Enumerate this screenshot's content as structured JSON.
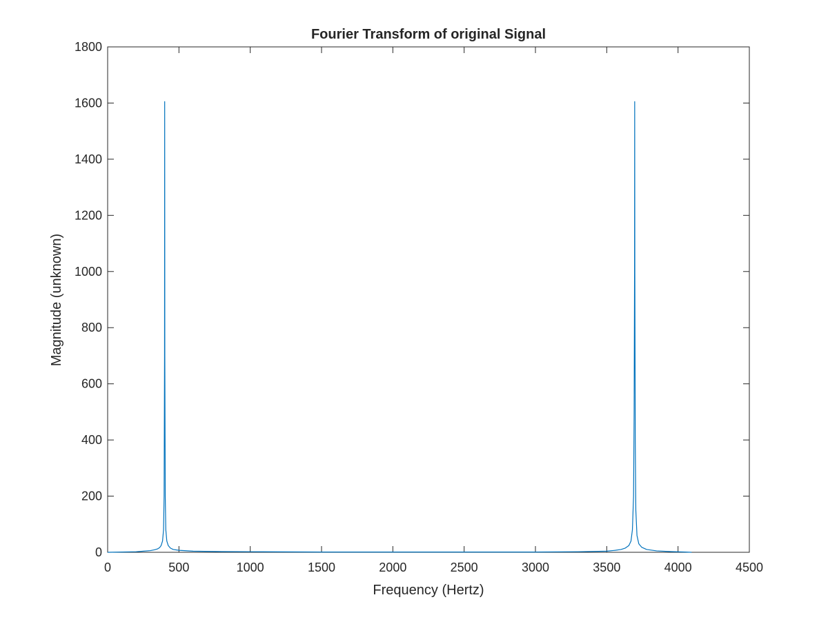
{
  "colors": {
    "background": "#ffffff",
    "axis": "#262626",
    "series": "#0072bd"
  },
  "chart_data": {
    "type": "line",
    "title": "Fourier Transform of original Signal",
    "xlabel": "Frequency (Hertz)",
    "ylabel": "Magnitude (unknown)",
    "xlim": [
      0,
      4500
    ],
    "ylim": [
      0,
      1800
    ],
    "xticks": [
      0,
      500,
      1000,
      1500,
      2000,
      2500,
      3000,
      3500,
      4000,
      4500
    ],
    "yticks": [
      0,
      200,
      400,
      600,
      800,
      1000,
      1200,
      1400,
      1600,
      1800
    ],
    "grid": false,
    "legend": "none",
    "series": [
      {
        "x": [
          0,
          100,
          200,
          250,
          300,
          330,
          350,
          365,
          375,
          385,
          392,
          396,
          399,
          400,
          401,
          404,
          408,
          415,
          425,
          440,
          460,
          500,
          600,
          800,
          1000,
          1500,
          2000,
          2500,
          3000,
          3300,
          3500,
          3560,
          3600,
          3630,
          3655,
          3670,
          3680,
          3688,
          3692,
          3695,
          3696,
          3697,
          3700,
          3704,
          3712,
          3725,
          3745,
          3780,
          3850,
          3950,
          4050,
          4095
        ],
        "y": [
          0,
          1,
          2,
          4,
          6,
          9,
          12,
          17,
          24,
          40,
          80,
          200,
          700,
          1605,
          700,
          200,
          80,
          40,
          24,
          15,
          10,
          7,
          4,
          2.5,
          2,
          1,
          1,
          1,
          1,
          2,
          4,
          7,
          10,
          15,
          24,
          40,
          80,
          200,
          500,
          1000,
          1605,
          1000,
          400,
          150,
          60,
          30,
          18,
          10,
          5,
          2.5,
          1,
          0
        ]
      }
    ]
  }
}
